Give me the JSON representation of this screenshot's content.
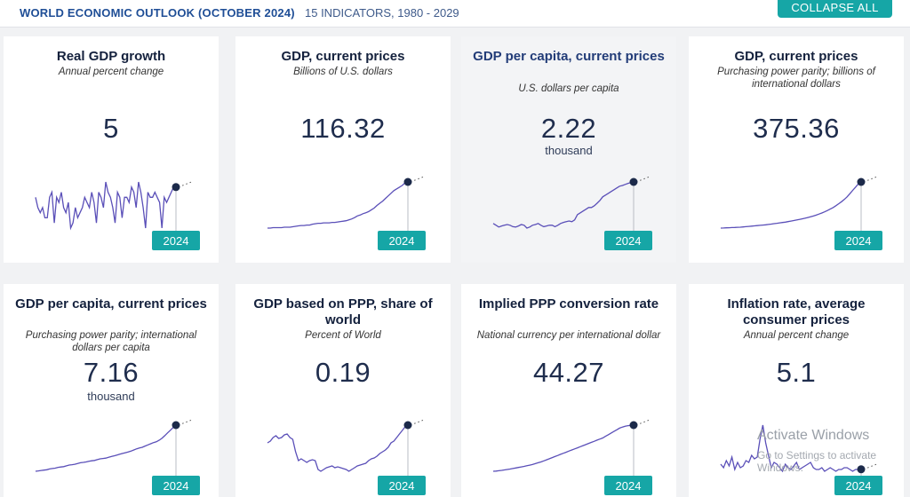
{
  "header": {
    "brand": "WORLD ECONOMIC OUTLOOK (OCTOBER 2024)",
    "subtitle": "15 INDICATORS, 1980 - 2029",
    "collapse_label": "COLLAPSE ALL"
  },
  "colors": {
    "accent": "#16a6a6",
    "line": "#5a4fb8",
    "marker": "#1c2a4a"
  },
  "cards": [
    {
      "title": "Real GDP growth",
      "unit": "Annual percent change",
      "value": "5",
      "multiplier": "",
      "year": "2024",
      "series": [
        3,
        1,
        0,
        1,
        -1,
        -1,
        3,
        4,
        -2,
        3,
        2,
        4,
        1,
        0,
        2,
        -3,
        -2,
        1,
        -1,
        0,
        1,
        3,
        2,
        1,
        4,
        2,
        -2,
        4,
        3,
        1,
        6,
        4,
        3,
        1,
        -2,
        4,
        3,
        -1,
        3,
        3,
        2,
        5,
        4,
        1,
        6,
        4,
        1,
        -3,
        4,
        3,
        3,
        4,
        3,
        2,
        -3,
        3,
        2,
        3,
        4,
        5,
        5
      ]
    },
    {
      "title": "GDP, current prices",
      "unit": "Billions of U.S. dollars",
      "value": "116.32",
      "multiplier": "",
      "year": "2024",
      "series": [
        10,
        10,
        11,
        11,
        11,
        11,
        12,
        12,
        12,
        13,
        14,
        15,
        16,
        16,
        17,
        17,
        19,
        20,
        21,
        21,
        22,
        22,
        22,
        23,
        23,
        24,
        25,
        26,
        27,
        29,
        31,
        34,
        38,
        40,
        43,
        45,
        48,
        52,
        56,
        62,
        67,
        72,
        78,
        84,
        90,
        96,
        100,
        104,
        108,
        114,
        116
      ]
    },
    {
      "title": "GDP per capita, current prices",
      "unit": "U.S. dollars per capita",
      "value": "2.22",
      "multiplier": "thousand",
      "year": "2024",
      "series": [
        1.05,
        1.0,
        0.95,
        0.98,
        1.0,
        1.02,
        1.0,
        0.96,
        0.95,
        0.98,
        1.02,
        1.0,
        0.92,
        0.95,
        1.0,
        1.02,
        1.05,
        1.0,
        0.96,
        0.98,
        1.0,
        1.0,
        0.96,
        1.0,
        1.05,
        1.08,
        1.1,
        1.12,
        1.1,
        1.15,
        1.3,
        1.35,
        1.4,
        1.45,
        1.5,
        1.5,
        1.55,
        1.62,
        1.7,
        1.8,
        1.85,
        1.9,
        1.95,
        2.0,
        2.05,
        2.1,
        2.12,
        2.15,
        2.18,
        2.2,
        2.22
      ]
    },
    {
      "title": "GDP, current prices",
      "unit": "Purchasing power parity; billions of international dollars",
      "value": "375.36",
      "multiplier": "",
      "year": "2024",
      "series": [
        20,
        21,
        22,
        23,
        24,
        25,
        26,
        27,
        29,
        31,
        33,
        35,
        37,
        39,
        41,
        43,
        45,
        48,
        51,
        54,
        57,
        60,
        63,
        66,
        70,
        74,
        78,
        82,
        86,
        91,
        96,
        101,
        107,
        113,
        120,
        128,
        136,
        145,
        155,
        166,
        178,
        192,
        207,
        223,
        240,
        260,
        285,
        310,
        335,
        360,
        375
      ]
    },
    {
      "title": "GDP per capita, current prices",
      "unit": "Purchasing power parity; international dollars per capita",
      "value": "7.16",
      "multiplier": "thousand",
      "year": "2024",
      "series": [
        1.2,
        1.25,
        1.3,
        1.35,
        1.4,
        1.5,
        1.55,
        1.6,
        1.7,
        1.75,
        1.8,
        1.9,
        2.0,
        2.05,
        2.1,
        2.2,
        2.3,
        2.35,
        2.4,
        2.5,
        2.55,
        2.6,
        2.7,
        2.8,
        2.85,
        2.9,
        3.0,
        3.1,
        3.2,
        3.3,
        3.4,
        3.5,
        3.6,
        3.7,
        3.8,
        3.95,
        4.1,
        4.2,
        4.3,
        4.45,
        4.6,
        4.75,
        4.9,
        5.0,
        5.2,
        5.45,
        5.8,
        6.15,
        6.5,
        6.85,
        7.16
      ]
    },
    {
      "title": "GDP based on PPP, share of world",
      "unit": "Percent of World",
      "value": "0.19",
      "multiplier": "",
      "year": "2024",
      "series": [
        0.17,
        0.172,
        0.176,
        0.178,
        0.175,
        0.176,
        0.179,
        0.18,
        0.176,
        0.174,
        0.16,
        0.15,
        0.152,
        0.15,
        0.148,
        0.15,
        0.151,
        0.15,
        0.14,
        0.138,
        0.14,
        0.142,
        0.143,
        0.144,
        0.142,
        0.143,
        0.142,
        0.141,
        0.14,
        0.138,
        0.14,
        0.142,
        0.144,
        0.145,
        0.146,
        0.147,
        0.15,
        0.152,
        0.153,
        0.155,
        0.158,
        0.16,
        0.162,
        0.165,
        0.17,
        0.172,
        0.176,
        0.18,
        0.184,
        0.188,
        0.19
      ]
    },
    {
      "title": "Implied PPP conversion rate",
      "unit": "National currency per international dollar",
      "value": "44.27",
      "multiplier": "",
      "year": "2024",
      "series": [
        2,
        2.2,
        2.5,
        2.8,
        3.2,
        3.6,
        4,
        4.5,
        5,
        5.5,
        6,
        6.5,
        7,
        7.6,
        8.2,
        9,
        9.8,
        10.5,
        11.5,
        12.5,
        13.5,
        14.5,
        15.5,
        16.5,
        17.5,
        18.5,
        19.5,
        20.5,
        21.5,
        22.5,
        23.5,
        24.5,
        25.5,
        26.5,
        27.5,
        28.5,
        29.5,
        30.5,
        31.5,
        32.5,
        34,
        35.5,
        37,
        38.5,
        40,
        41.5,
        42.5,
        43.3,
        43.8,
        44,
        44.27
      ]
    },
    {
      "title": "Inflation rate, average consumer prices",
      "unit": "Annual percent change",
      "value": "5.1",
      "multiplier": "",
      "year": "2024",
      "series": [
        8,
        6,
        10,
        7,
        12,
        5,
        9,
        6,
        7,
        10,
        9,
        13,
        11,
        12,
        22,
        30,
        20,
        13,
        6,
        9,
        8,
        6,
        4,
        8,
        6,
        5,
        7,
        9,
        5,
        6,
        7,
        8,
        9,
        6,
        5,
        5,
        6,
        4,
        5,
        6,
        5,
        4,
        5,
        5,
        6,
        6,
        5,
        4,
        5,
        5,
        5.1
      ]
    }
  ]
}
